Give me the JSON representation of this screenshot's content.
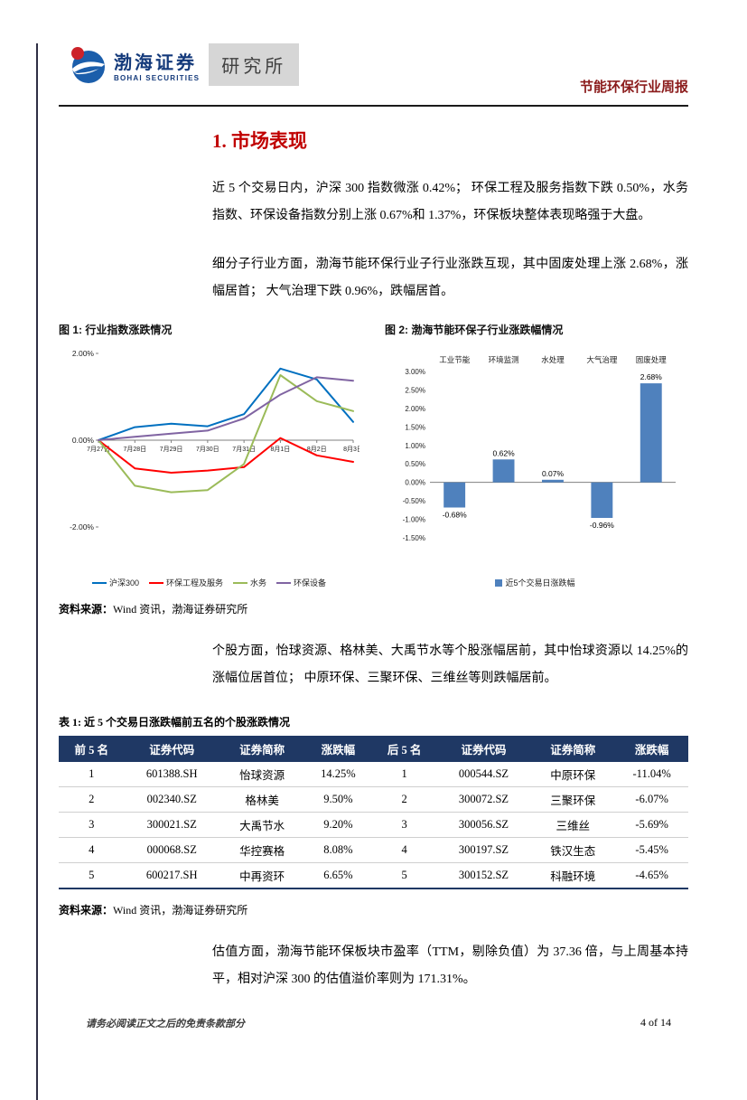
{
  "page": {
    "header": {
      "logo_cn": "渤海证券",
      "logo_en": "BOHAI SECURITIES",
      "dept": "研究所",
      "report_title": "节能环保行业周报"
    },
    "section_title": "1. 市场表现",
    "paragraphs": {
      "p1": "近 5 个交易日内，沪深 300 指数微涨 0.42%； 环保工程及服务指数下跌 0.50%，水务指数、环保设备指数分别上涨 0.67%和 1.37%，环保板块整体表现略强于大盘。",
      "p2": "细分子行业方面，渤海节能环保行业子行业涨跌互现，其中固废处理上涨 2.68%，涨幅居首； 大气治理下跌 0.96%，跌幅居首。",
      "p3": "个股方面，怡球资源、格林美、大禹节水等个股涨幅居前，其中怡球资源以 14.25%的涨幅位居首位； 中原环保、三聚环保、三维丝等则跌幅居前。",
      "p4": "估值方面，渤海节能环保板块市盈率（TTM，剔除负值）为 37.36 倍，与上周基本持平，相对沪深 300 的估值溢价率则为 171.31%。"
    },
    "fig1_caption": "图 1: 行业指数涨跌情况",
    "fig2_caption": "图 2: 渤海节能环保子行业涨跌幅情况",
    "source_label": "资料来源：",
    "source_text": "Wind 资讯，渤海证券研究所",
    "table_caption": "表 1: 近 5 个交易日涨跌幅前五名的个股涨跌情况",
    "footer": {
      "disclaimer": "请务必阅读正文之后的免责条款部分",
      "page_number": "4 of 14"
    }
  },
  "table": {
    "headers": [
      "前 5 名",
      "证券代码",
      "证券简称",
      "涨跌幅",
      "后 5 名",
      "证券代码",
      "证券简称",
      "涨跌幅"
    ],
    "rows": [
      [
        "1",
        "601388.SH",
        "怡球资源",
        "14.25%",
        "1",
        "000544.SZ",
        "中原环保",
        "-11.04%"
      ],
      [
        "2",
        "002340.SZ",
        "格林美",
        "9.50%",
        "2",
        "300072.SZ",
        "三聚环保",
        "-6.07%"
      ],
      [
        "3",
        "300021.SZ",
        "大禹节水",
        "9.20%",
        "3",
        "300056.SZ",
        "三维丝",
        "-5.69%"
      ],
      [
        "4",
        "000068.SZ",
        "华控赛格",
        "8.08%",
        "4",
        "300197.SZ",
        "铁汉生态",
        "-5.45%"
      ],
      [
        "5",
        "600217.SH",
        "中再资环",
        "6.65%",
        "5",
        "300152.SZ",
        "科融环境",
        "-4.65%"
      ]
    ]
  },
  "chart_data": [
    {
      "type": "line",
      "title": "行业指数涨跌情况",
      "x": [
        "7月27日",
        "7月28日",
        "7月29日",
        "7月30日",
        "7月31日",
        "8月1日",
        "8月2日",
        "8月3日"
      ],
      "series": [
        {
          "name": "沪深300",
          "color": "#0070C0",
          "values": [
            0,
            0.3,
            0.38,
            0.32,
            0.6,
            1.65,
            1.4,
            0.42
          ]
        },
        {
          "name": "环保工程及服务",
          "color": "#FF0000",
          "values": [
            0,
            -0.65,
            -0.75,
            -0.7,
            -0.62,
            0.05,
            -0.35,
            -0.5
          ]
        },
        {
          "name": "水务",
          "color": "#9BBB59",
          "values": [
            0,
            -1.05,
            -1.2,
            -1.15,
            -0.55,
            1.5,
            0.9,
            0.67
          ]
        },
        {
          "name": "环保设备",
          "color": "#8064A2",
          "values": [
            0,
            0.08,
            0.15,
            0.22,
            0.5,
            1.05,
            1.45,
            1.37
          ]
        }
      ],
      "ylim": [
        -2,
        2
      ],
      "yticks": [
        {
          "value": 2,
          "label": "2.00%"
        },
        {
          "value": 0,
          "label": "0.00%"
        },
        {
          "value": -2,
          "label": "-2.00%"
        }
      ],
      "grid": false,
      "legend_position": "bottom"
    },
    {
      "type": "bar",
      "title": "渤海节能环保子行业涨跌幅情况",
      "categories": [
        "工业节能",
        "环境监测",
        "水处理",
        "大气治理",
        "固废处理"
      ],
      "values": [
        -0.68,
        0.62,
        0.07,
        -0.96,
        2.68
      ],
      "labels": [
        "-0.68%",
        "0.62%",
        "0.07%",
        "-0.96%",
        "2.68%"
      ],
      "legend": "近5个交易日涨跌幅",
      "bar_color": "#4F81BD",
      "ylim": [
        -1.5,
        3.0
      ],
      "yticks": [
        {
          "value": 3.0,
          "label": "3.00%"
        },
        {
          "value": 2.5,
          "label": "2.50%"
        },
        {
          "value": 2.0,
          "label": "2.00%"
        },
        {
          "value": 1.5,
          "label": "1.50%"
        },
        {
          "value": 1.0,
          "label": "1.00%"
        },
        {
          "value": 0.5,
          "label": "0.50%"
        },
        {
          "value": 0.0,
          "label": "0.00%"
        },
        {
          "value": -0.5,
          "label": "-0.50%"
        },
        {
          "value": -1.0,
          "label": "-1.00%"
        },
        {
          "value": -1.5,
          "label": "-1.50%"
        }
      ],
      "grid": false,
      "legend_position": "bottom"
    }
  ]
}
